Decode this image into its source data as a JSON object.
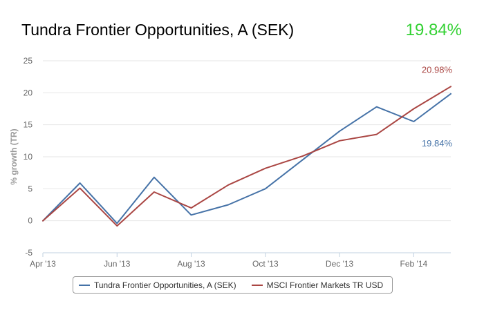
{
  "header": {
    "title": "Tundra Frontier Opportunities, A (SEK)",
    "headline_value": "19.84%",
    "headline_color": "#33d133"
  },
  "chart_data": {
    "type": "line",
    "ylabel": "% growth (TR)",
    "ylim": [
      -5,
      25
    ],
    "yticks": [
      -5,
      0,
      5,
      10,
      15,
      20,
      25
    ],
    "x_ticks": [
      "Apr '13",
      "Jun '13",
      "Aug '13",
      "Oct '13",
      "Dec '13",
      "Feb '14"
    ],
    "x_domain": [
      "Apr '13",
      "Mar '14"
    ],
    "grid": "horizontal",
    "legend_position": "bottom",
    "series": [
      {
        "name": "Tundra Frontier Opportunities, A (SEK)",
        "color": "#4572a7",
        "end_label": "19.84%",
        "points": [
          [
            "Apr '13",
            0.0
          ],
          [
            "May '13",
            5.9
          ],
          [
            "Jun '13",
            -0.4
          ],
          [
            "Jul '13",
            6.8
          ],
          [
            "Aug '13",
            0.9
          ],
          [
            "Sep '13",
            2.5
          ],
          [
            "Oct '13",
            5.0
          ],
          [
            "Nov '13",
            9.5
          ],
          [
            "Dec '13",
            14.0
          ],
          [
            "Jan '14",
            17.8
          ],
          [
            "Feb '14",
            15.5
          ],
          [
            "Mar '14",
            19.84
          ]
        ]
      },
      {
        "name": "MSCI Frontier Markets TR USD",
        "color": "#aa4643",
        "end_label": "20.98%",
        "points": [
          [
            "Apr '13",
            0.0
          ],
          [
            "May '13",
            5.1
          ],
          [
            "Jun '13",
            -0.8
          ],
          [
            "Jul '13",
            4.5
          ],
          [
            "Aug '13",
            2.0
          ],
          [
            "Sep '13",
            5.6
          ],
          [
            "Oct '13",
            8.2
          ],
          [
            "Nov '13",
            10.1
          ],
          [
            "Dec '13",
            12.5
          ],
          [
            "Jan '14",
            13.5
          ],
          [
            "Feb '14",
            17.5
          ],
          [
            "Mar '14",
            20.98
          ]
        ]
      }
    ]
  }
}
